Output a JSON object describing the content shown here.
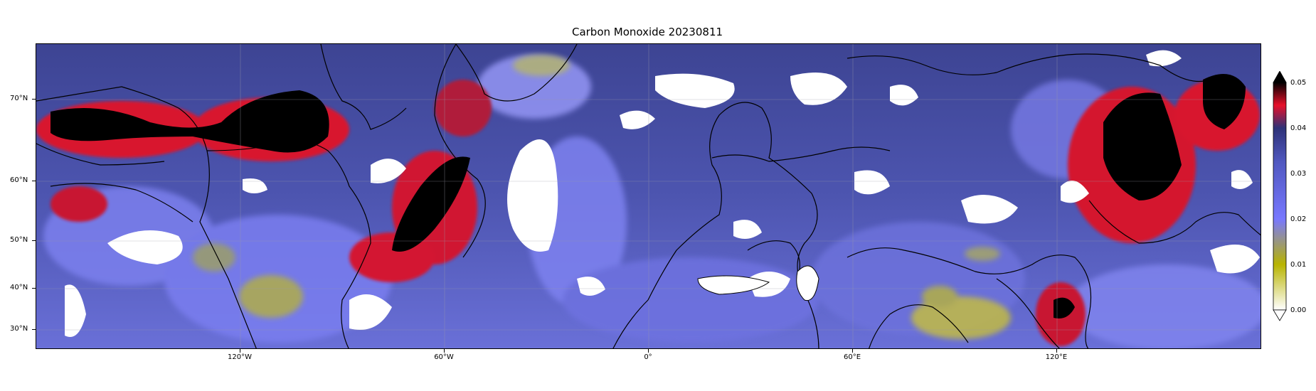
{
  "title": "Carbon Monoxide 20230811",
  "lat_ticks": [
    "70°N",
    "60°N",
    "50°N",
    "40°N",
    "30°N"
  ],
  "lon_ticks": [
    "120°W",
    "60°W",
    "0°",
    "60°E",
    "120°E"
  ],
  "colorbar": {
    "ticks": [
      "0.00",
      "0.01",
      "0.02",
      "0.03",
      "0.04",
      "0.05"
    ],
    "min": 0.0,
    "max": 0.05,
    "extend": "both",
    "colors": [
      "#ffffff",
      "#b8b400",
      "#7878ff",
      "#3a3f8c",
      "#e8102a",
      "#000000"
    ]
  },
  "map": {
    "projection": "Mercator",
    "lon_range": [
      -180,
      180
    ],
    "lat_range": [
      26,
      80
    ],
    "background_color": "#4a50a8",
    "no_data_color": "#ffffff"
  }
}
